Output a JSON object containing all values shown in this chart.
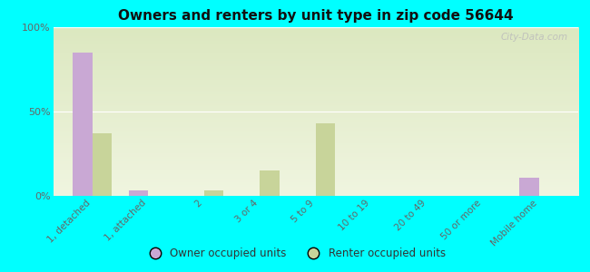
{
  "title": "Owners and renters by unit type in zip code 56644",
  "categories": [
    "1, detached",
    "1, attached",
    "2",
    "3 or 4",
    "5 to 9",
    "10 to 19",
    "20 to 49",
    "50 or more",
    "Mobile home"
  ],
  "owner_values": [
    85,
    3,
    0,
    0,
    0,
    0,
    0,
    0,
    11
  ],
  "renter_values": [
    37,
    0,
    3,
    15,
    43,
    0,
    0,
    0,
    0
  ],
  "owner_color": "#c9a8d4",
  "renter_color": "#c8d49a",
  "background_color": "#00ffff",
  "plot_bg_top": "#dce8c0",
  "plot_bg_bottom": "#f0f5e0",
  "ylim": [
    0,
    100
  ],
  "yticks": [
    0,
    50,
    100
  ],
  "ytick_labels": [
    "0%",
    "50%",
    "100%"
  ],
  "bar_width": 0.35,
  "legend_owner": "Owner occupied units",
  "legend_renter": "Renter occupied units",
  "watermark": "City-Data.com"
}
